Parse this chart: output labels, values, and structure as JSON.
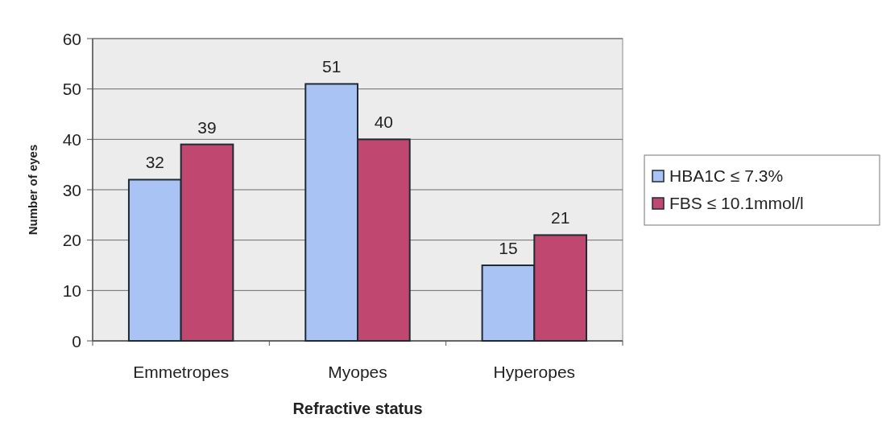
{
  "chart_data": {
    "type": "bar",
    "xlabel": "Refractive status",
    "ylabel": "Number of eyes",
    "categories": [
      "Emmetropes",
      "Myopes",
      "Hyperopes"
    ],
    "series": [
      {
        "name": "HBA1C ≤ 7.3%",
        "color": "#a9c4f4",
        "values": [
          32,
          51,
          15
        ]
      },
      {
        "name": "FBS ≤ 10.1mmol/l",
        "color": "#c04870",
        "values": [
          39,
          40,
          21
        ]
      }
    ],
    "ylim": [
      0,
      60
    ],
    "yticks": [
      0,
      10,
      20,
      30,
      40,
      50,
      60
    ],
    "grid": "y",
    "legend": "right",
    "data_labels": true
  }
}
